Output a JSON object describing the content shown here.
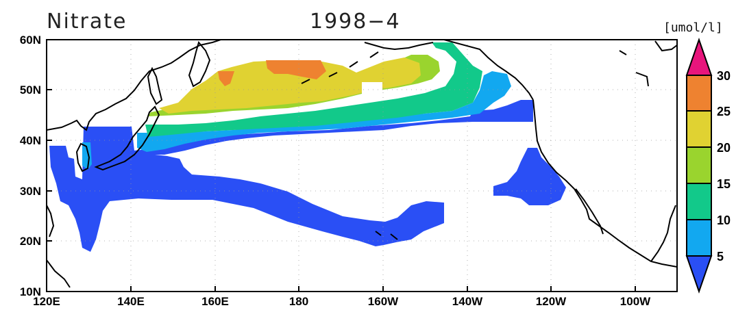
{
  "map": {
    "variable": "Nitrate",
    "period": "1998−4",
    "unit_label": "[umol/l]",
    "lon_range": [
      120,
      270
    ],
    "lat_range": [
      10,
      60
    ],
    "grid": true,
    "lon_ticks": [
      "120E",
      "140E",
      "160E",
      "180",
      "160W",
      "140W",
      "120W",
      "100W"
    ],
    "lat_ticks": [
      "10N",
      "20N",
      "30N",
      "40N",
      "50N",
      "60N"
    ]
  },
  "colorbar": {
    "levels": [
      "5",
      "10",
      "15",
      "20",
      "25",
      "30"
    ],
    "colors": [
      "#2a4ff5",
      "#12a8f0",
      "#12c98a",
      "#9ad42e",
      "#e0d232",
      "#ee8230",
      "#e8157c"
    ]
  },
  "chart_data": {
    "type": "heatmap",
    "title": "Nitrate",
    "subtitle": "1998−4",
    "units": "[umol/l]",
    "x_range": [
      120,
      270
    ],
    "y_range": [
      10,
      60
    ],
    "bins": [
      {
        "range": "<5",
        "color": "#2a4ff5"
      },
      {
        "range": "5-10",
        "color": "#12a8f0"
      },
      {
        "range": "10-15",
        "color": "#12c98a"
      },
      {
        "range": "15-20",
        "color": "#9ad42e"
      },
      {
        "range": "20-25",
        "color": "#e0d232"
      },
      {
        "range": "25-30",
        "color": "#ee8230"
      },
      {
        "range": ">30",
        "color": "#e8157c"
      }
    ],
    "regions": [
      {
        "desc": "North Pacific high nitrate band",
        "lon": [
          160,
          205
        ],
        "lat": [
          49,
          56
        ],
        "level": "20-25"
      },
      {
        "desc": "Peak values",
        "lon": [
          175,
          188
        ],
        "lat": [
          52,
          56
        ],
        "level": "25-30"
      },
      {
        "desc": "Subtropical western Pacific",
        "lon": [
          122,
          230
        ],
        "lat": [
          19,
          40
        ],
        "level": "<5"
      },
      {
        "desc": "California Current",
        "lon": [
          234,
          246
        ],
        "lat": [
          28,
          38
        ],
        "level": "<5"
      }
    ]
  }
}
